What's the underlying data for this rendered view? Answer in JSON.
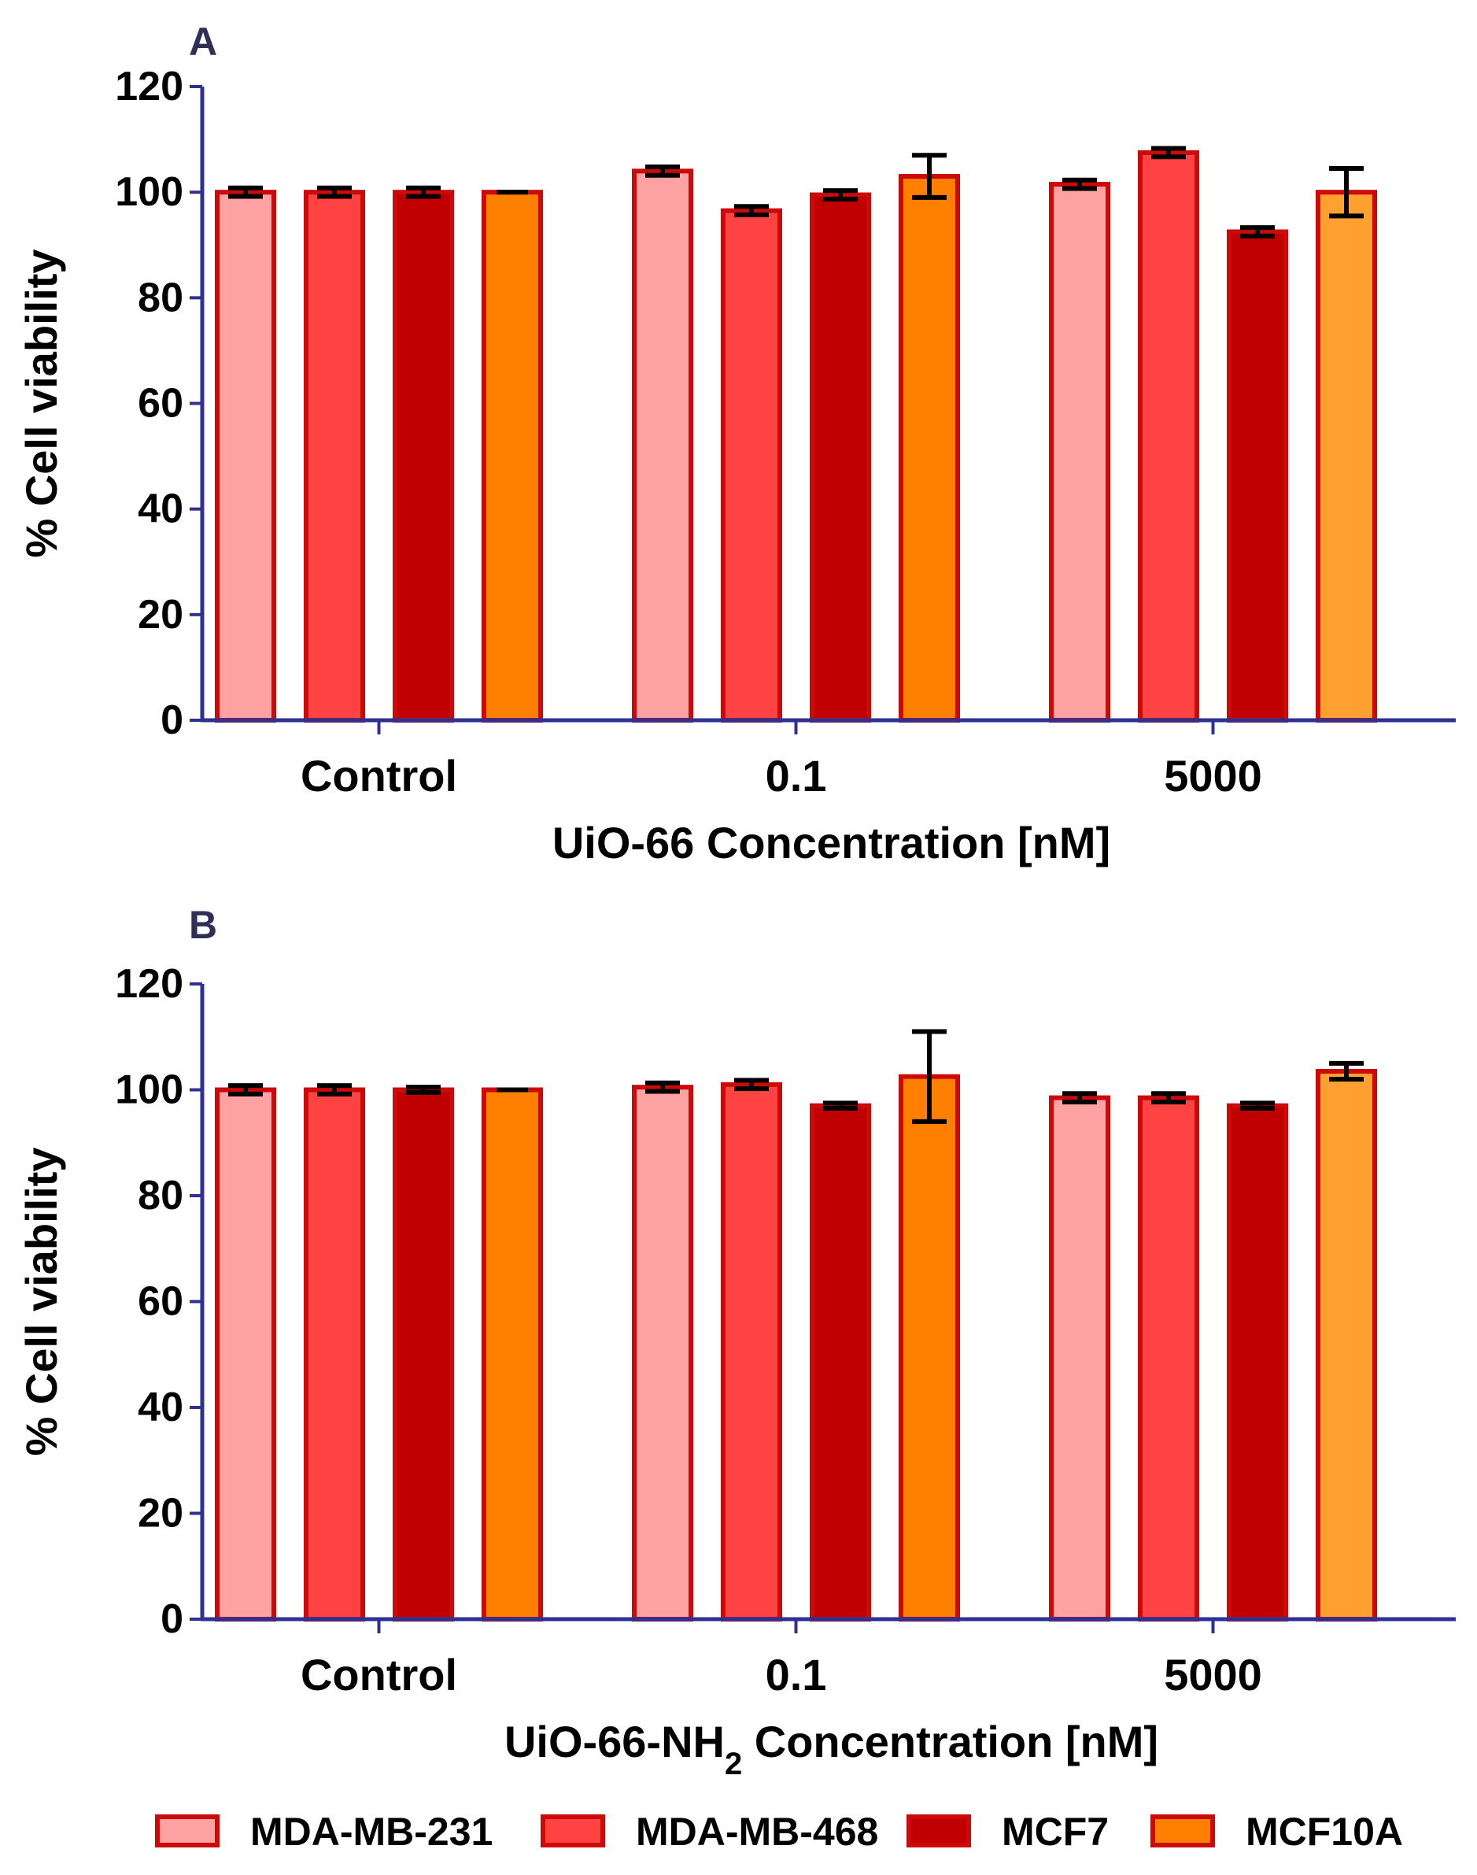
{
  "colors": {
    "axis": "#2e3192",
    "bar_edge": "#cc0a0a",
    "series_fill": [
      "#fca2a2",
      "#ff4242",
      "#c00000",
      "#ff8000",
      "#ffa030"
    ]
  },
  "legend": [
    {
      "name": "MDA-MB-231",
      "color": "#fca2a2"
    },
    {
      "name": "MDA-MB-468",
      "color": "#ff4242"
    },
    {
      "name": "MCF7",
      "color": "#c00000"
    },
    {
      "name": "MCF10A",
      "color": "#ff8000"
    }
  ],
  "chart_data": [
    {
      "type": "bar",
      "panel": "A",
      "title": "",
      "xlabel": "UiO-66 Concentration [nM]",
      "xlabel_parts": [
        {
          "text": "UiO-66 Concentration [nM]",
          "sub": false
        }
      ],
      "ylabel": "% Cell viability",
      "ylim": [
        0,
        120
      ],
      "yticks": [
        "0",
        "20",
        "40",
        "60",
        "80",
        "100",
        "120"
      ],
      "categories": [
        "Control",
        "0.1",
        "5000"
      ],
      "series": [
        {
          "name": "MDA-MB-231",
          "values": [
            100,
            104,
            101.5
          ],
          "errors": [
            0.8,
            0.8,
            0.8
          ],
          "fills": [
            "#fca2a2",
            "#fca2a2",
            "#fca2a2"
          ]
        },
        {
          "name": "MDA-MB-468",
          "values": [
            100,
            96.5,
            107.5
          ],
          "errors": [
            0.8,
            0.8,
            0.8
          ],
          "fills": [
            "#ff4242",
            "#ff4242",
            "#ff4242"
          ]
        },
        {
          "name": "MCF7",
          "values": [
            100,
            99.5,
            92.5
          ],
          "errors": [
            0.8,
            0.8,
            0.8
          ],
          "fills": [
            "#c00000",
            "#c00000",
            "#c00000"
          ]
        },
        {
          "name": "MCF10A",
          "values": [
            100,
            103,
            100
          ],
          "errors": [
            0,
            4,
            4.5
          ],
          "fills": [
            "#ff8000",
            "#ff8000",
            "#ffa030"
          ]
        }
      ]
    },
    {
      "type": "bar",
      "panel": "B",
      "title": "",
      "xlabel": "UiO-66-NH2 Concentration [nM]",
      "xlabel_parts": [
        {
          "text": "UiO-66-NH",
          "sub": false
        },
        {
          "text": "2",
          "sub": true
        },
        {
          "text": " Concentration [nM]",
          "sub": false
        }
      ],
      "ylabel": "% Cell viability",
      "ylim": [
        0,
        120
      ],
      "yticks": [
        "0",
        "20",
        "40",
        "60",
        "80",
        "100",
        "120"
      ],
      "categories": [
        "Control",
        "0.1",
        "5000"
      ],
      "series": [
        {
          "name": "MDA-MB-231",
          "values": [
            100,
            100.5,
            98.5
          ],
          "errors": [
            0.8,
            0.8,
            0.8
          ],
          "fills": [
            "#fca2a2",
            "#fca2a2",
            "#fca2a2"
          ]
        },
        {
          "name": "MDA-MB-468",
          "values": [
            100,
            101,
            98.5
          ],
          "errors": [
            0.8,
            0.8,
            0.8
          ],
          "fills": [
            "#ff4242",
            "#ff4242",
            "#ff4242"
          ]
        },
        {
          "name": "MCF7",
          "values": [
            100,
            97,
            97
          ],
          "errors": [
            0.5,
            0.5,
            0.5
          ],
          "fills": [
            "#c00000",
            "#c00000",
            "#c00000"
          ]
        },
        {
          "name": "MCF10A",
          "values": [
            100,
            102.5,
            103.5
          ],
          "errors": [
            0,
            8.5,
            1.5
          ],
          "fills": [
            "#ff8000",
            "#ff8000",
            "#ffa030"
          ]
        }
      ]
    }
  ]
}
